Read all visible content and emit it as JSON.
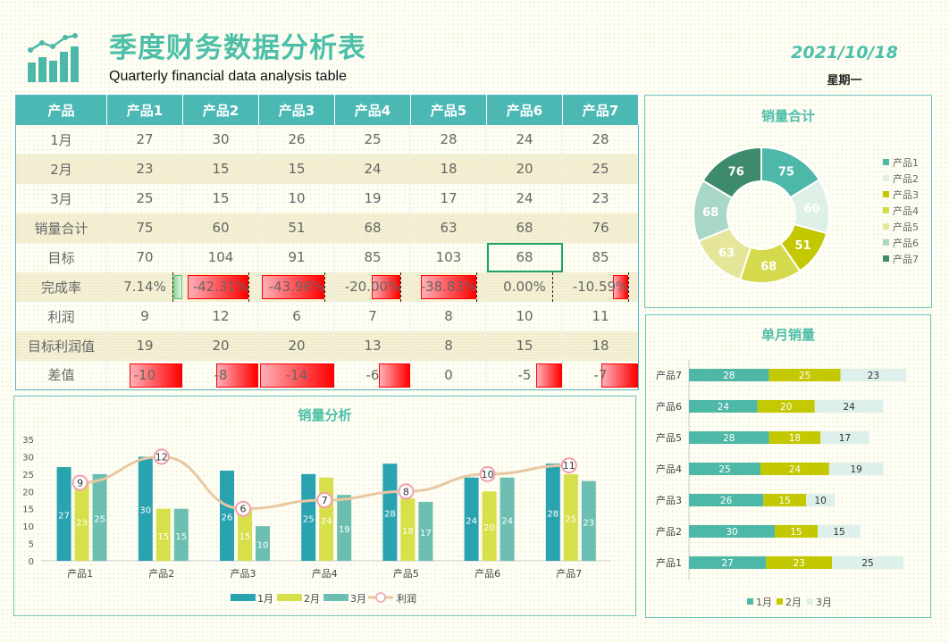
{
  "header": {
    "title": "季度财务数据分析表",
    "subtitle": "Quarterly financial data analysis table",
    "date": "2021/10/18",
    "weekday": "星期一",
    "accent": "#4dbfa8"
  },
  "table": {
    "columns": [
      "产品",
      "产品1",
      "产品2",
      "产品3",
      "产品4",
      "产品5",
      "产品6",
      "产品7"
    ],
    "rows": [
      {
        "label": "1月",
        "values": [
          "27",
          "30",
          "26",
          "25",
          "28",
          "24",
          "28"
        ]
      },
      {
        "label": "2月",
        "values": [
          "23",
          "15",
          "15",
          "24",
          "18",
          "20",
          "25"
        ]
      },
      {
        "label": "3月",
        "values": [
          "25",
          "15",
          "10",
          "19",
          "17",
          "24",
          "23"
        ]
      },
      {
        "label": "销量合计",
        "values": [
          "75",
          "60",
          "51",
          "68",
          "63",
          "68",
          "76"
        ]
      },
      {
        "label": "目标",
        "values": [
          "70",
          "104",
          "91",
          "85",
          "103",
          "68",
          "85"
        ]
      },
      {
        "label": "完成率",
        "values": [
          "7.14%",
          "-42.31%",
          "-43.96%",
          "-20.00%",
          "-38.83%",
          "0.00%",
          "-10.59%"
        ],
        "bars": [
          7.14,
          -42.31,
          -43.96,
          -20.0,
          -38.83,
          0,
          -10.59
        ]
      },
      {
        "label": "利润",
        "values": [
          "9",
          "12",
          "6",
          "7",
          "8",
          "10",
          "11"
        ]
      },
      {
        "label": "目标利润值",
        "values": [
          "19",
          "20",
          "20",
          "13",
          "8",
          "15",
          "18"
        ]
      },
      {
        "label": "差值",
        "values": [
          "-10",
          "-8",
          "-14",
          "-6",
          "0",
          "-5",
          "-7"
        ],
        "bars": [
          -10,
          -8,
          -14,
          -6,
          0,
          -5,
          -7
        ]
      }
    ],
    "selected_cell": {
      "row": "目标",
      "column": "产品6"
    }
  },
  "chart_data": [
    {
      "type": "pie",
      "title": "销量合计",
      "donut": true,
      "categories": [
        "产品1",
        "产品2",
        "产品3",
        "产品4",
        "产品5",
        "产品6",
        "产品7"
      ],
      "values": [
        75,
        60,
        51,
        68,
        63,
        68,
        76
      ],
      "colors": [
        "#4db8a8",
        "#dff0e6",
        "#c3c800",
        "#d4da4c",
        "#e6e69a",
        "#a9d9c6",
        "#3d8b6c"
      ],
      "legend": "right"
    },
    {
      "type": "bar",
      "title": "销量分析",
      "categories": [
        "产品1",
        "产品2",
        "产品3",
        "产品4",
        "产品5",
        "产品6",
        "产品7"
      ],
      "ylim": [
        0,
        35
      ],
      "yticks": [
        0,
        5,
        10,
        15,
        20,
        25,
        30,
        35
      ],
      "series": [
        {
          "name": "1月",
          "values": [
            27,
            30,
            26,
            25,
            28,
            24,
            28
          ],
          "color": "#2aa3b0"
        },
        {
          "name": "2月",
          "values": [
            23,
            15,
            15,
            24,
            18,
            20,
            25
          ],
          "color": "#d7e04a"
        },
        {
          "name": "3月",
          "values": [
            25,
            15,
            10,
            19,
            17,
            24,
            23
          ],
          "color": "#6cbfb0"
        },
        {
          "name": "利润",
          "type": "line",
          "secondary_axis": true,
          "values": [
            9,
            12,
            6,
            7,
            8,
            10,
            11
          ],
          "color": "#e8c8a0",
          "marker": "#f0a0b0"
        }
      ],
      "legend": "bottom"
    },
    {
      "type": "bar",
      "orientation": "horizontal",
      "stacked": true,
      "title": "单月销量",
      "categories": [
        "产品1",
        "产品2",
        "产品3",
        "产品4",
        "产品5",
        "产品6",
        "产品7"
      ],
      "series": [
        {
          "name": "1月",
          "values": [
            27,
            30,
            26,
            25,
            28,
            24,
            28
          ],
          "color": "#4db8a8"
        },
        {
          "name": "2月",
          "values": [
            23,
            15,
            15,
            24,
            18,
            20,
            25
          ],
          "color": "#c3c800"
        },
        {
          "name": "3月",
          "values": [
            25,
            15,
            10,
            19,
            17,
            24,
            23
          ],
          "color": "#ddf0ec"
        }
      ],
      "legend": "bottom"
    }
  ]
}
